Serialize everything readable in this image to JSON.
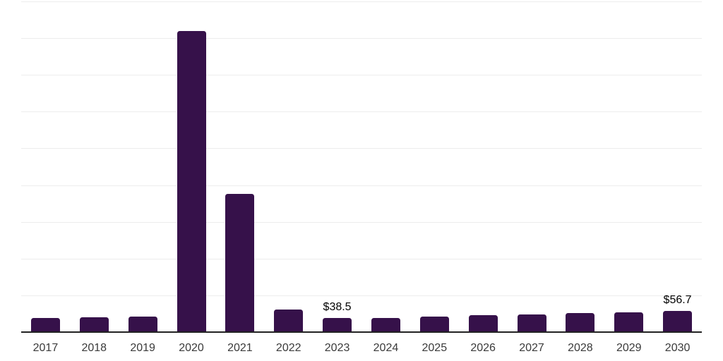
{
  "chart_data": {
    "type": "bar",
    "title": "",
    "xlabel": "",
    "ylabel": "",
    "categories": [
      "2017",
      "2018",
      "2019",
      "2020",
      "2021",
      "2022",
      "2023",
      "2024",
      "2025",
      "2026",
      "2027",
      "2028",
      "2029",
      "2030"
    ],
    "values": [
      37.5,
      41,
      43,
      820,
      377,
      62,
      38.5,
      37.5,
      42,
      45.5,
      47.5,
      51.5,
      53.5,
      56.7
    ],
    "data_labels": [
      "",
      "",
      "",
      "",
      "",
      "",
      "$38.5",
      "",
      "",
      "",
      "",
      "",
      "",
      "$56.7"
    ],
    "ylim": [
      0,
      900
    ],
    "gridline_step": 100,
    "grid": "horizontal-only",
    "legend": "none",
    "y_axis_tick_labels_visible": false,
    "colors": {
      "bar": "#36114a",
      "axis_line": "#222222",
      "gridline": "#ededed",
      "tick_label": "#3a3a3a",
      "data_label": "#000000",
      "background": "#ffffff"
    }
  }
}
